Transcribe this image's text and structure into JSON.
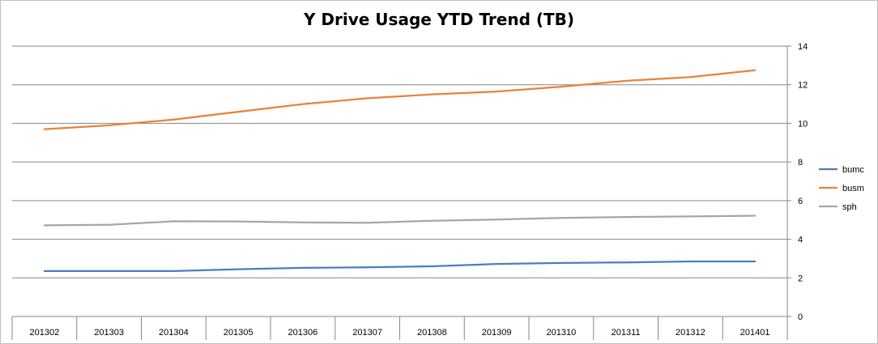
{
  "chart_data": {
    "type": "line",
    "title": "Y Drive Usage YTD Trend (TB)",
    "xlabel": "",
    "ylabel": "",
    "categories": [
      "201302",
      "201303",
      "201304",
      "201305",
      "201306",
      "201307",
      "201308",
      "201309",
      "201310",
      "201311",
      "201312",
      "201401"
    ],
    "ylim": [
      0,
      14
    ],
    "yticks": [
      0,
      2,
      4,
      6,
      8,
      10,
      12,
      14
    ],
    "y_axis_side": "right",
    "grid": true,
    "legend_position": "right",
    "series": [
      {
        "name": "bumc",
        "color": "#4a7ebb",
        "values": [
          2.35,
          2.35,
          2.35,
          2.45,
          2.52,
          2.55,
          2.6,
          2.72,
          2.77,
          2.8,
          2.85,
          2.85
        ]
      },
      {
        "name": "busm",
        "color": "#e8823a",
        "values": [
          9.7,
          9.9,
          10.2,
          10.6,
          11.0,
          11.3,
          11.5,
          11.65,
          11.9,
          12.2,
          12.4,
          12.75
        ]
      },
      {
        "name": "sph",
        "color": "#a6a6a6",
        "values": [
          4.72,
          4.75,
          4.93,
          4.92,
          4.87,
          4.85,
          4.96,
          5.02,
          5.1,
          5.15,
          5.18,
          5.22
        ]
      }
    ]
  }
}
